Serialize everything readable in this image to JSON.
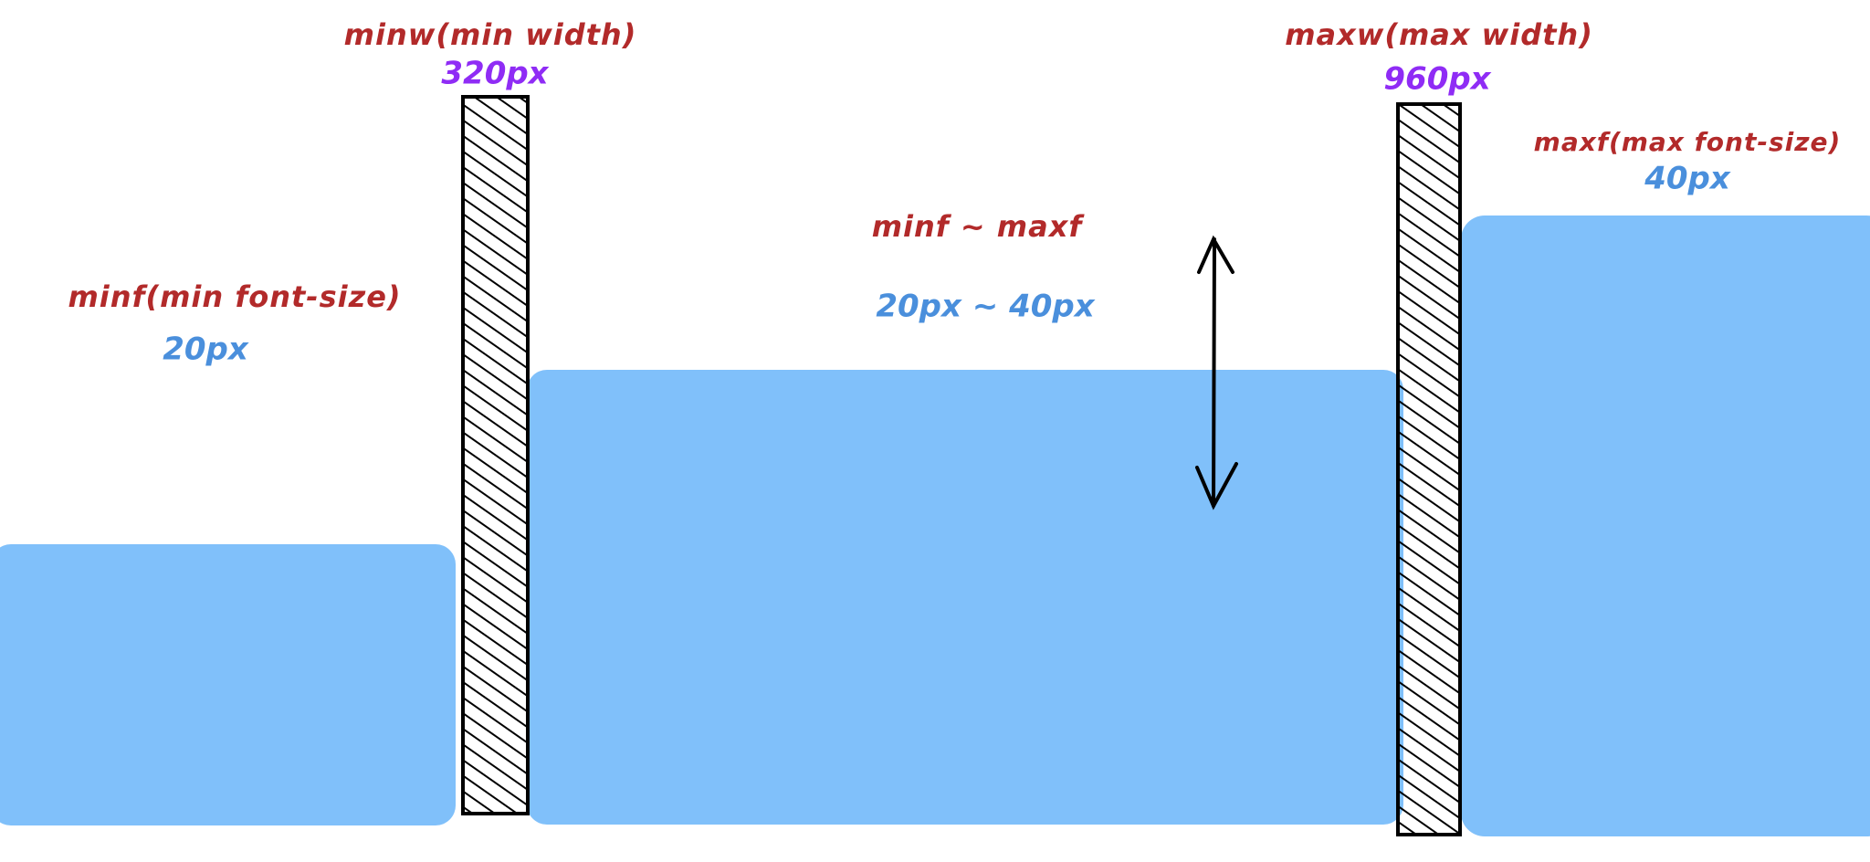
{
  "labels": {
    "min_width": {
      "name": "minw(min width)",
      "value": "320px"
    },
    "max_width": {
      "name": "maxw(max width)",
      "value": "960px"
    },
    "min_font": {
      "name": "minf(min font-size)",
      "value": "20px"
    },
    "max_font": {
      "name": "maxf(max font-size)",
      "value": "40px"
    },
    "range": {
      "name": "minf ~ maxf",
      "value": "20px ~ 40px"
    }
  }
}
